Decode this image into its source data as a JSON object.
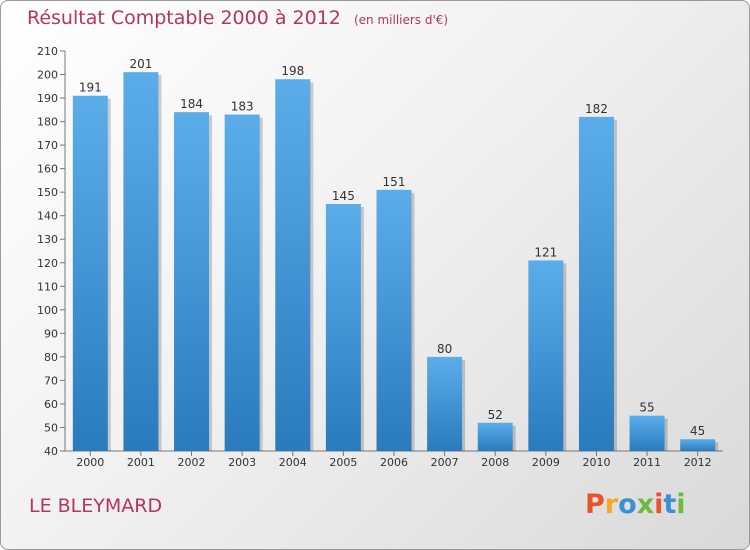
{
  "header": {
    "title": "Résultat Comptable 2000 à 2012",
    "unit": "(en milliers d'€)"
  },
  "footer": {
    "place": "LE BLEYMARD",
    "logo": "Proxiti",
    "logo_colors": [
      "#e8532d",
      "#f7a823",
      "#3a8fd6",
      "#6dbb3c",
      "#e8532d",
      "#3a8fd6",
      "#6dbb3c"
    ]
  },
  "colors": {
    "title": "#b5365a",
    "bar_top": "#5badea",
    "bar_bottom": "#2a7bbd"
  },
  "chart_data": {
    "type": "bar",
    "title": "Résultat Comptable 2000 à 2012",
    "categories": [
      "2000",
      "2001",
      "2002",
      "2003",
      "2004",
      "2005",
      "2006",
      "2007",
      "2008",
      "2009",
      "2010",
      "2011",
      "2012"
    ],
    "values": [
      191,
      201,
      184,
      183,
      198,
      145,
      151,
      80,
      52,
      121,
      182,
      55,
      45
    ],
    "ylim": [
      40,
      210
    ],
    "yticks": [
      40,
      50,
      60,
      70,
      80,
      90,
      100,
      110,
      120,
      130,
      140,
      150,
      160,
      170,
      180,
      190,
      200,
      210
    ],
    "grid": false,
    "legend": "none"
  }
}
